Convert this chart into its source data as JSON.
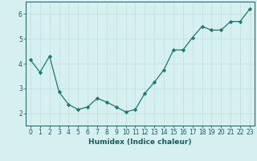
{
  "x": [
    0,
    1,
    2,
    3,
    4,
    5,
    6,
    7,
    8,
    9,
    10,
    11,
    12,
    13,
    14,
    15,
    16,
    17,
    18,
    19,
    20,
    21,
    22,
    23
  ],
  "y": [
    4.15,
    3.65,
    4.3,
    2.85,
    2.35,
    2.15,
    2.25,
    2.6,
    2.45,
    2.25,
    2.05,
    2.15,
    2.8,
    3.25,
    3.75,
    4.55,
    4.55,
    5.05,
    5.5,
    5.35,
    5.35,
    5.7,
    5.7,
    6.2
  ],
  "line_color": "#1a7a6e",
  "marker": "D",
  "marker_size": 2.2,
  "bg_color": "#d6f0f0",
  "grid_color": "#c0dede",
  "xlabel": "Humidex (Indice chaleur)",
  "ylim": [
    1.5,
    6.5
  ],
  "xlim": [
    -0.5,
    23.5
  ],
  "yticks": [
    2,
    3,
    4,
    5,
    6
  ],
  "xticks": [
    0,
    1,
    2,
    3,
    4,
    5,
    6,
    7,
    8,
    9,
    10,
    11,
    12,
    13,
    14,
    15,
    16,
    17,
    18,
    19,
    20,
    21,
    22,
    23
  ],
  "font_color": "#1a5a5a",
  "label_fontsize": 6.5,
  "tick_fontsize": 5.5,
  "linewidth": 0.9
}
